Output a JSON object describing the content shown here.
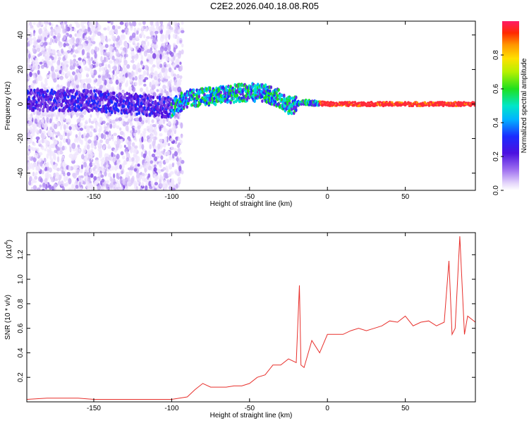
{
  "title": "C2E2.2026.040.18.08.R05",
  "colors": {
    "frame": "#000000",
    "snr_line": "#e8302c",
    "spectrum_purple": "#6a1fe0",
    "spectrum_light": "#c9a8f5"
  },
  "chart_data": [
    {
      "type": "heatmap",
      "name": "spectrogram",
      "xlabel": "Height of straight line (km)",
      "ylabel": "Frequency (Hz)",
      "xlim": [
        -193,
        95
      ],
      "ylim": [
        -50,
        48
      ],
      "xticks": [
        -150,
        -100,
        -50,
        0,
        50
      ],
      "xtick_labels": [
        "-150",
        "-100",
        "-50",
        "0",
        "50"
      ],
      "yticks": [
        -40,
        -20,
        0,
        20,
        40
      ],
      "ytick_labels": [
        "-40",
        "-20",
        "0",
        "20",
        "40"
      ],
      "ridge": {
        "description_points_x": [
          -193,
          -150,
          -100,
          -90,
          -70,
          -50,
          -40,
          -30,
          -25,
          -15,
          0,
          50,
          95
        ],
        "frequency_center": [
          2,
          2,
          -2,
          3,
          5,
          7,
          6,
          3,
          -1,
          1,
          0,
          0,
          0
        ]
      },
      "colorbar": {
        "label": "Normalized spectral amplitude",
        "range": [
          0.0,
          1.0
        ],
        "ticks": [
          0.0,
          0.2,
          0.4,
          0.6,
          0.8
        ],
        "tick_labels": [
          "0.0",
          "0.2",
          "0.4",
          "0.6",
          "0.8"
        ]
      },
      "grid": false
    },
    {
      "type": "line",
      "name": "snr",
      "xlabel": "Height of straight line (km)",
      "ylabel": "SNR (10 * v/v)",
      "y_multiplier_label": "(x10",
      "y_multiplier_exp": "4",
      "y_multiplier_close": ")",
      "xlim": [
        -193,
        95
      ],
      "ylim": [
        0.0,
        1.38
      ],
      "xticks": [
        -150,
        -100,
        -50,
        0,
        50
      ],
      "xtick_labels": [
        "-150",
        "-100",
        "-50",
        "0",
        "50"
      ],
      "yticks": [
        0.2,
        0.4,
        0.6,
        0.8,
        1.0,
        1.2
      ],
      "ytick_labels": [
        "0.2",
        "0.4",
        "0.6",
        "0.8",
        "1.0",
        "1.2"
      ],
      "series": [
        {
          "x": [
            -193,
            -180,
            -170,
            -160,
            -150,
            -140,
            -130,
            -120,
            -110,
            -100,
            -95,
            -90,
            -85,
            -80,
            -75,
            -70,
            -65,
            -60,
            -55,
            -50,
            -45,
            -40,
            -35,
            -30,
            -25,
            -20,
            -18,
            -17,
            -15,
            -10,
            -5,
            0,
            5,
            10,
            15,
            20,
            25,
            30,
            35,
            40,
            45,
            50,
            55,
            60,
            65,
            70,
            75,
            78,
            80,
            82,
            85,
            88,
            90,
            95
          ],
          "values": [
            0.02,
            0.03,
            0.03,
            0.03,
            0.02,
            0.02,
            0.02,
            0.02,
            0.02,
            0.02,
            0.03,
            0.04,
            0.1,
            0.15,
            0.12,
            0.12,
            0.12,
            0.13,
            0.13,
            0.15,
            0.2,
            0.22,
            0.3,
            0.3,
            0.35,
            0.32,
            0.95,
            0.3,
            0.28,
            0.5,
            0.4,
            0.55,
            0.55,
            0.55,
            0.58,
            0.6,
            0.58,
            0.6,
            0.62,
            0.66,
            0.65,
            0.7,
            0.62,
            0.65,
            0.66,
            0.62,
            0.65,
            1.15,
            0.55,
            0.6,
            1.35,
            0.55,
            0.7,
            0.65
          ]
        }
      ],
      "grid": false
    }
  ]
}
